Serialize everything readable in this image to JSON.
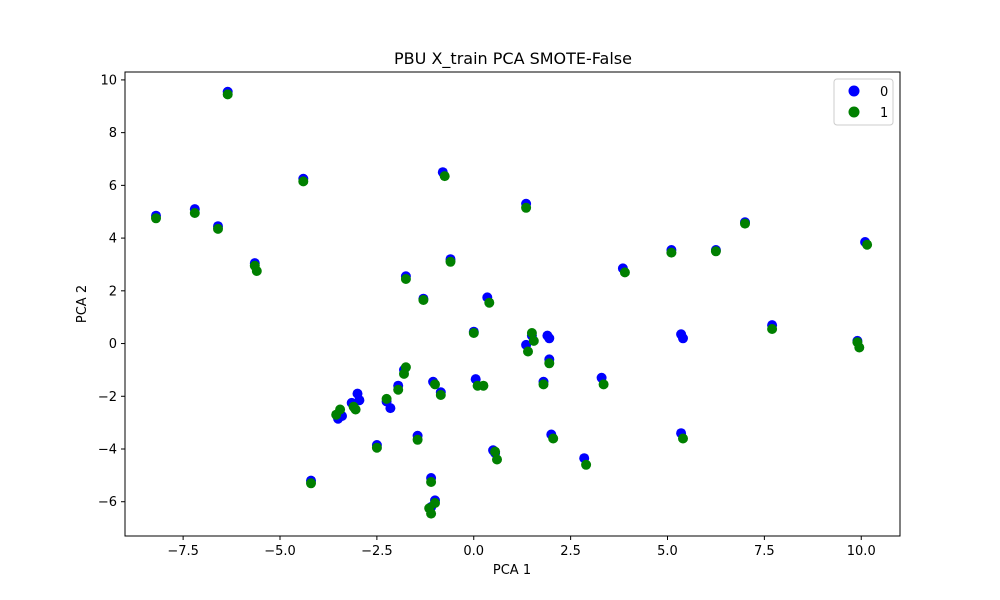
{
  "chart_data": {
    "type": "scatter",
    "title": "PBU X_train PCA SMOTE-False",
    "xlabel": "PCA 1",
    "ylabel": "PCA 2",
    "xlim": [
      -9.0,
      11.0
    ],
    "ylim": [
      -7.3,
      10.3
    ],
    "xticks": [
      -7.5,
      -5.0,
      -2.5,
      0.0,
      2.5,
      5.0,
      7.5,
      10.0
    ],
    "xtick_labels": [
      "−7.5",
      "−5.0",
      "−2.5",
      "0.0",
      "2.5",
      "5.0",
      "7.5",
      "10.0"
    ],
    "yticks": [
      -6,
      -4,
      -2,
      0,
      2,
      4,
      6,
      8,
      10
    ],
    "ytick_labels": [
      "−6",
      "−4",
      "−2",
      "0",
      "2",
      "4",
      "6",
      "8",
      "10"
    ],
    "grid": false,
    "legend_position": "top-right",
    "series": [
      {
        "name": "0",
        "color": "#0000ff",
        "points": [
          [
            -8.2,
            4.85
          ],
          [
            -7.2,
            5.1
          ],
          [
            -6.6,
            4.45
          ],
          [
            -6.35,
            9.55
          ],
          [
            -5.65,
            3.05
          ],
          [
            -4.4,
            6.25
          ],
          [
            -4.2,
            -5.2
          ],
          [
            -3.5,
            -2.85
          ],
          [
            -3.4,
            -2.75
          ],
          [
            -3.15,
            -2.25
          ],
          [
            -3.0,
            -1.9
          ],
          [
            -2.95,
            -2.15
          ],
          [
            -2.5,
            -3.85
          ],
          [
            -2.25,
            -2.2
          ],
          [
            -2.15,
            -2.45
          ],
          [
            -1.95,
            -1.6
          ],
          [
            -1.8,
            -1.0
          ],
          [
            -1.75,
            2.55
          ],
          [
            -1.45,
            -3.5
          ],
          [
            -1.3,
            1.7
          ],
          [
            -1.1,
            -5.1
          ],
          [
            -1.05,
            -1.45
          ],
          [
            -1.0,
            -5.95
          ],
          [
            -1.1,
            -6.2
          ],
          [
            -0.85,
            -1.85
          ],
          [
            -0.8,
            6.5
          ],
          [
            -0.6,
            3.2
          ],
          [
            0.0,
            0.45
          ],
          [
            0.05,
            -1.35
          ],
          [
            0.35,
            1.75
          ],
          [
            0.5,
            -4.05
          ],
          [
            0.55,
            -4.15
          ],
          [
            1.35,
            5.3
          ],
          [
            1.35,
            -0.05
          ],
          [
            1.5,
            0.3
          ],
          [
            1.8,
            -1.45
          ],
          [
            1.9,
            0.3
          ],
          [
            1.95,
            0.2
          ],
          [
            1.95,
            -0.6
          ],
          [
            2.0,
            -3.45
          ],
          [
            2.85,
            -4.35
          ],
          [
            3.3,
            -1.3
          ],
          [
            3.85,
            2.85
          ],
          [
            5.1,
            3.55
          ],
          [
            5.35,
            0.35
          ],
          [
            5.4,
            0.2
          ],
          [
            5.35,
            -3.4
          ],
          [
            6.25,
            3.55
          ],
          [
            7.0,
            4.6
          ],
          [
            7.7,
            0.7
          ],
          [
            9.9,
            0.1
          ],
          [
            10.1,
            3.85
          ]
        ]
      },
      {
        "name": "1",
        "color": "#008000",
        "points": [
          [
            -8.2,
            4.75
          ],
          [
            -7.2,
            4.95
          ],
          [
            -6.6,
            4.35
          ],
          [
            -6.35,
            9.45
          ],
          [
            -5.65,
            2.95
          ],
          [
            -5.6,
            2.75
          ],
          [
            -4.4,
            6.15
          ],
          [
            -4.2,
            -5.3
          ],
          [
            -3.55,
            -2.7
          ],
          [
            -3.45,
            -2.5
          ],
          [
            -3.1,
            -2.4
          ],
          [
            -3.05,
            -2.5
          ],
          [
            -2.5,
            -3.95
          ],
          [
            -2.25,
            -2.1
          ],
          [
            -1.95,
            -1.75
          ],
          [
            -1.8,
            -1.15
          ],
          [
            -1.75,
            -0.9
          ],
          [
            -1.75,
            2.45
          ],
          [
            -1.45,
            -3.65
          ],
          [
            -1.3,
            1.65
          ],
          [
            -1.1,
            -5.25
          ],
          [
            -1.0,
            -1.55
          ],
          [
            -1.0,
            -6.05
          ],
          [
            -1.1,
            -6.45
          ],
          [
            -1.15,
            -6.25
          ],
          [
            -0.85,
            -1.95
          ],
          [
            -0.75,
            6.35
          ],
          [
            -0.6,
            3.1
          ],
          [
            0.0,
            0.4
          ],
          [
            0.1,
            -1.6
          ],
          [
            0.25,
            -1.6
          ],
          [
            0.4,
            1.55
          ],
          [
            0.55,
            -4.1
          ],
          [
            0.6,
            -4.4
          ],
          [
            1.35,
            5.15
          ],
          [
            1.4,
            -0.3
          ],
          [
            1.5,
            0.4
          ],
          [
            1.55,
            0.1
          ],
          [
            1.8,
            -1.55
          ],
          [
            1.95,
            -0.75
          ],
          [
            2.05,
            -3.6
          ],
          [
            2.9,
            -4.6
          ],
          [
            3.35,
            -1.55
          ],
          [
            3.9,
            2.7
          ],
          [
            5.1,
            3.45
          ],
          [
            5.4,
            -3.6
          ],
          [
            6.25,
            3.5
          ],
          [
            7.0,
            4.55
          ],
          [
            7.7,
            0.55
          ],
          [
            9.9,
            0.05
          ],
          [
            9.95,
            -0.15
          ],
          [
            10.15,
            3.75
          ]
        ]
      }
    ]
  }
}
